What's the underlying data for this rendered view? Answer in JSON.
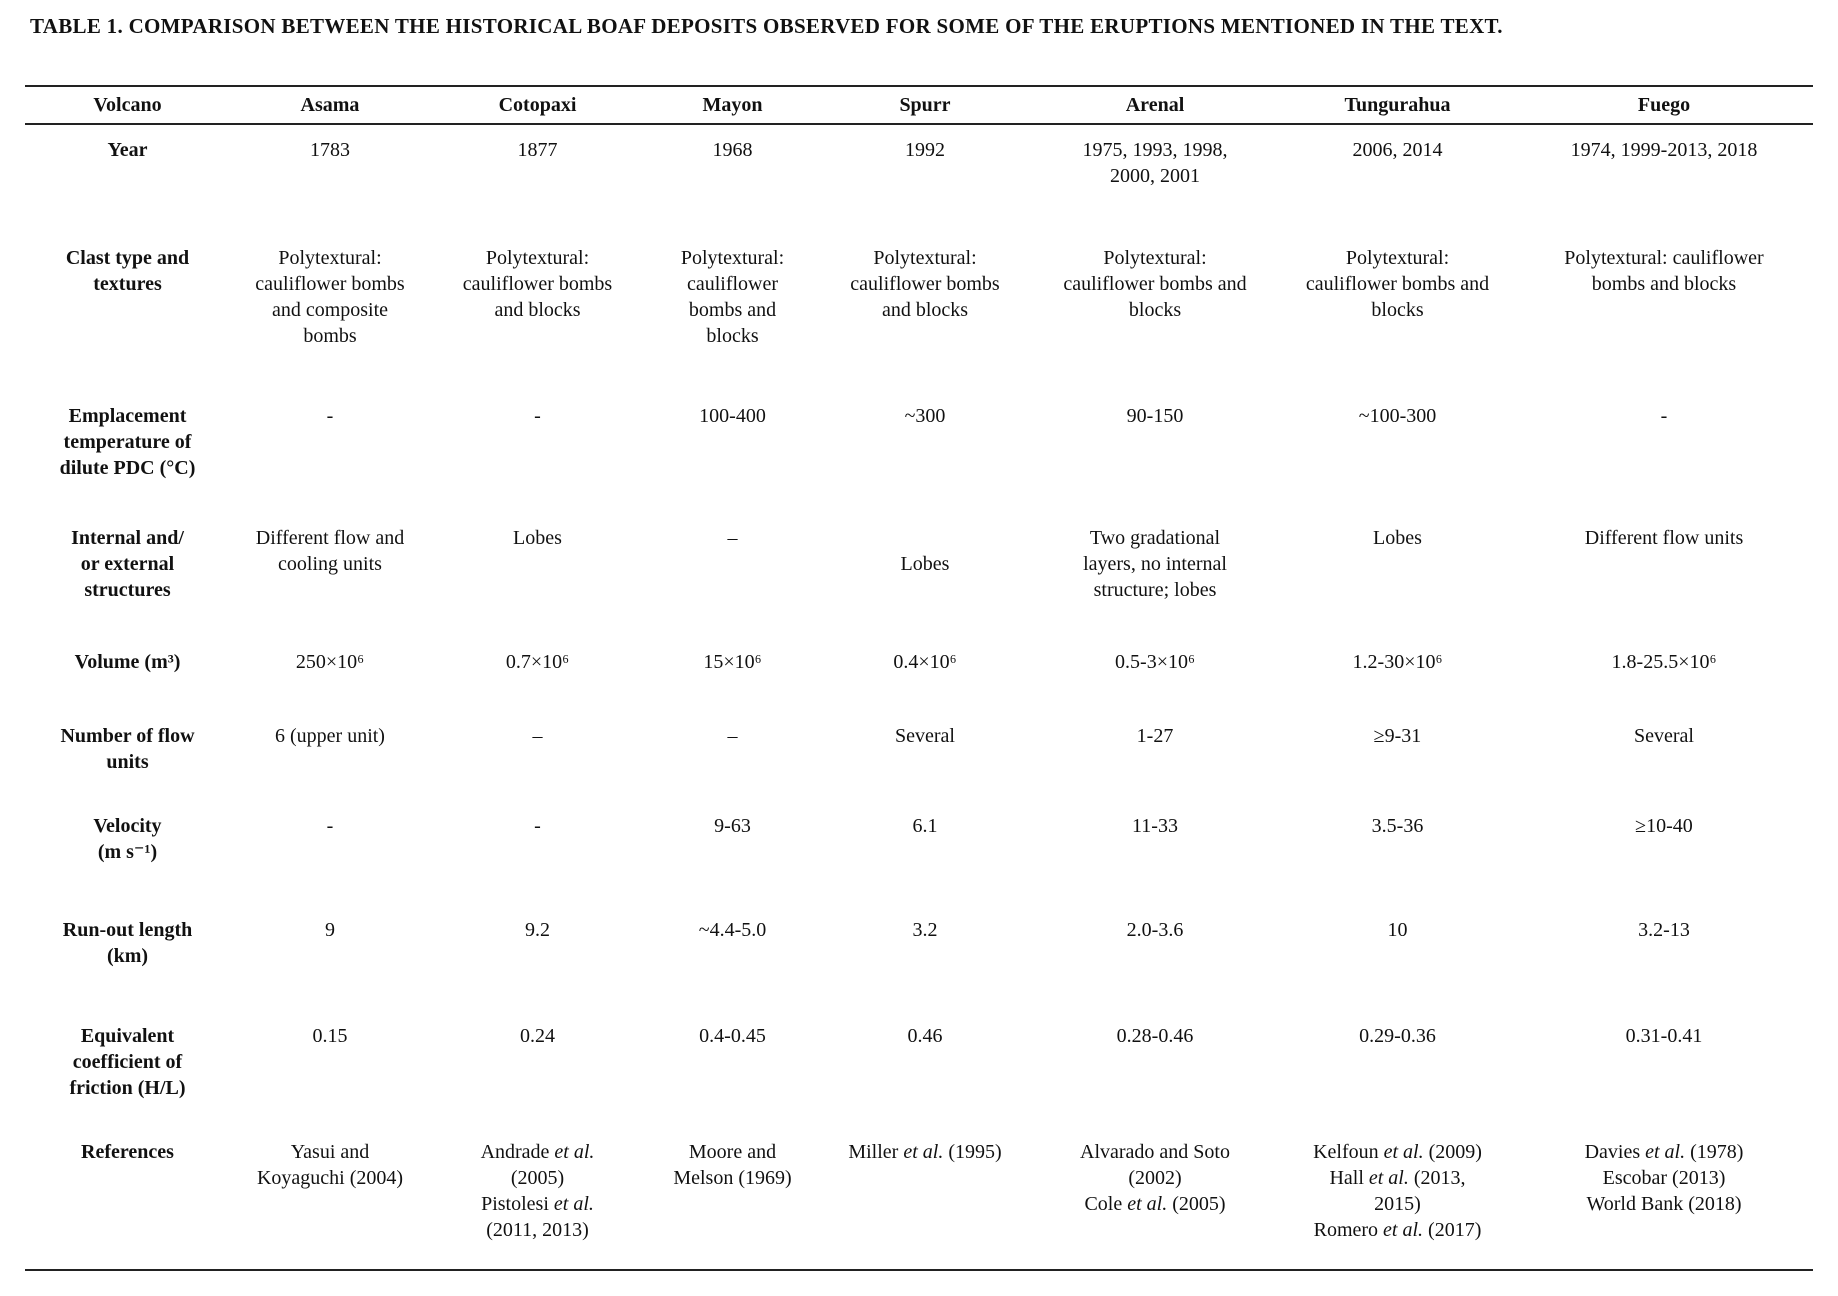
{
  "title": "TABLE 1. COMPARISON BETWEEN THE HISTORICAL BOAF DEPOSITS OBSERVED FOR SOME OF THE ERUPTIONS MENTIONED IN THE TEXT.",
  "table": {
    "header": [
      "Volcano",
      "Asama",
      "Cotopaxi",
      "Mayon",
      "Spurr",
      "Arenal",
      "Tungurahua",
      "Fuego"
    ],
    "rows": [
      {
        "label": "Year",
        "cells": [
          "1783",
          "1877",
          "1968",
          "1992",
          "1975, 1993, 1998,\n2000, 2001",
          "2006, 2014",
          "1974, 1999-2013, 2018"
        ]
      },
      {
        "label": "Clast type and\ntextures",
        "cells": [
          "Polytextural:\ncauliflower bombs\nand composite\nbombs",
          "Polytextural:\ncauliflower bombs\nand blocks",
          "Polytextural:\ncauliflower\nbombs and\nblocks",
          "Polytextural:\ncauliflower bombs\nand blocks",
          "Polytextural:\ncauliflower bombs and\nblocks",
          "Polytextural:\ncauliflower bombs and\nblocks",
          "Polytextural: cauliflower\nbombs and blocks"
        ]
      },
      {
        "label": "Emplacement\ntemperature of\ndilute PDC (°C)",
        "cells": [
          "-",
          "-",
          "100-400",
          "~300",
          "90-150",
          "~100-300",
          "-"
        ]
      },
      {
        "label": "Internal and/\nor external\nstructures",
        "cells": [
          "Different flow and\ncooling units",
          "Lobes",
          "–",
          "\nLobes",
          "Two gradational\nlayers, no internal\nstructure; lobes",
          "Lobes",
          "Different flow units"
        ]
      },
      {
        "label": "Volume (m³)",
        "cells": [
          "250×10⁶",
          "0.7×10⁶",
          "15×10⁶",
          "0.4×10⁶",
          "0.5-3×10⁶",
          "1.2-30×10⁶",
          "1.8-25.5×10⁶"
        ]
      },
      {
        "label": "Number of flow\nunits",
        "cells": [
          "6 (upper unit)",
          "–",
          "–",
          "Several",
          "1-27",
          "≥9-31",
          "Several"
        ]
      },
      {
        "label": "Velocity\n(m s⁻¹)",
        "cells": [
          "-",
          "-",
          "9-63",
          "6.1",
          "11-33",
          "3.5-36",
          "≥10-40"
        ]
      },
      {
        "label": "Run-out length\n(km)",
        "cells": [
          "9",
          "9.2",
          "~4.4-5.0",
          "3.2",
          "2.0-3.6",
          "10",
          "3.2-13"
        ]
      },
      {
        "label": "Equivalent\ncoefficient of\nfriction (H/L)",
        "cells": [
          "0.15",
          "0.24",
          "0.4-0.45",
          "0.46",
          "0.28-0.46",
          "0.29-0.36",
          "0.31-0.41"
        ]
      },
      {
        "label": "References",
        "cells": [
          "Yasui and\nKoyaguchi (2004)",
          "Andrade et al.\n(2005)\nPistolesi et al.\n(2011, 2013)",
          "Moore and\nMelson (1969)",
          "Miller et al. (1995)",
          "Alvarado and Soto\n(2002)\nCole et al. (2005)",
          "Kelfoun et al. (2009)\nHall et al. (2013,\n2015)\nRomero et al. (2017)",
          "Davies et al. (1978)\nEscobar (2013)\nWorld Bank (2018)"
        ]
      }
    ]
  }
}
